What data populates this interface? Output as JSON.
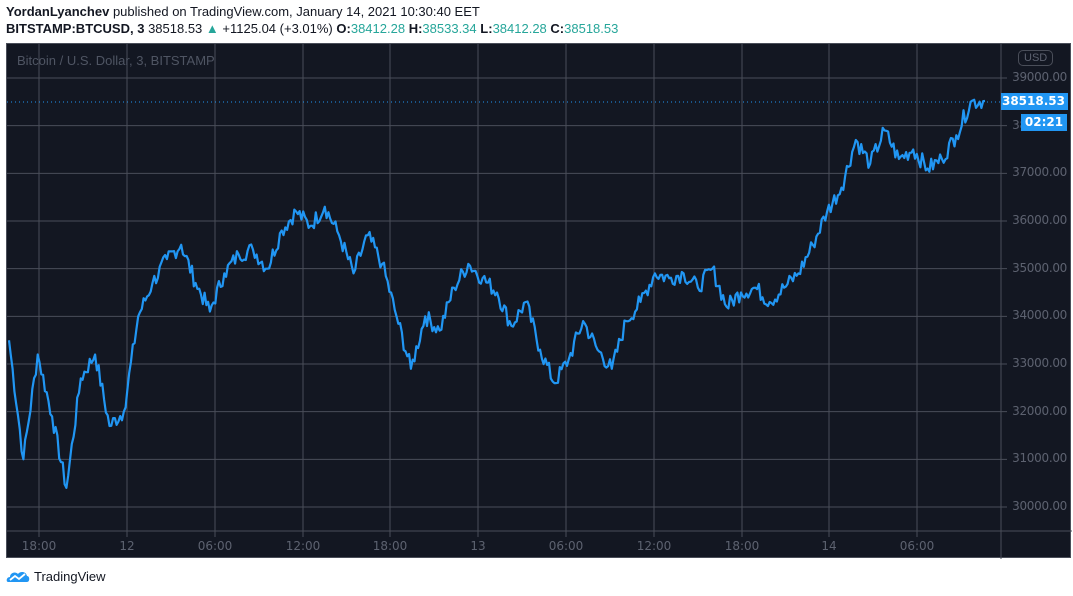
{
  "header": {
    "author": "YordanLyanchev",
    "published_text": "published on TradingView.com, January 14, 2021 10:30:40 EET",
    "symbol": "BITSTAMP:BTCUSD, 3",
    "last": "38518.53",
    "change_arrow": "▲",
    "change": "+1125.04 (+3.01%)",
    "open_label": "O:",
    "open": "38412.28",
    "high_label": "H:",
    "high": "38533.34",
    "low_label": "L:",
    "low": "38412.28",
    "close_label": "C:",
    "close": "38518.53"
  },
  "chart": {
    "legend_title": "Bitcoin / U.S. Dollar, 3, BITSTAMP",
    "currency_badge": "USD",
    "price_tag": "38518.53",
    "countdown_tag": "02:21",
    "colors": {
      "background": "#131722",
      "line": "#2196f3",
      "grid": "#4a4e59",
      "up": "#26a69a"
    }
  },
  "footer": {
    "brand": "TradingView"
  },
  "chart_data": {
    "type": "line",
    "title": "Bitcoin / U.S. Dollar, 3, BITSTAMP",
    "xlabel": "",
    "ylabel": "USD",
    "ylim": [
      29500,
      39500
    ],
    "grid": true,
    "y_ticks": [
      "39000.00",
      "38000.00",
      "37000.00",
      "36000.00",
      "35000.00",
      "34000.00",
      "33000.00",
      "32000.00",
      "31000.00",
      "30000.00"
    ],
    "x_ticks": [
      "18:00",
      "12",
      "06:00",
      "12:00",
      "18:00",
      "13",
      "06:00",
      "12:00",
      "18:00",
      "14",
      "06:00"
    ],
    "last_price": 38518.53,
    "series": [
      {
        "name": "BTCUSD",
        "x": [
          "Jan11 15:00",
          "Jan11 16:00",
          "Jan11 17:00",
          "Jan11 18:00",
          "Jan11 19:00",
          "Jan11 20:00",
          "Jan11 21:00",
          "Jan11 22:00",
          "Jan11 23:00",
          "Jan12 00:00",
          "Jan12 01:00",
          "Jan12 02:00",
          "Jan12 03:00",
          "Jan12 04:00",
          "Jan12 05:00",
          "Jan12 06:00",
          "Jan12 07:00",
          "Jan12 08:00",
          "Jan12 09:00",
          "Jan12 10:00",
          "Jan12 11:00",
          "Jan12 12:00",
          "Jan12 13:00",
          "Jan12 14:00",
          "Jan12 15:00",
          "Jan12 16:00",
          "Jan12 17:00",
          "Jan12 18:00",
          "Jan12 19:00",
          "Jan12 20:00",
          "Jan12 21:00",
          "Jan12 22:00",
          "Jan12 23:00",
          "Jan13 00:00",
          "Jan13 01:00",
          "Jan13 02:00",
          "Jan13 03:00",
          "Jan13 04:00",
          "Jan13 05:00",
          "Jan13 06:00",
          "Jan13 07:00",
          "Jan13 08:00",
          "Jan13 09:00",
          "Jan13 10:00",
          "Jan13 11:00",
          "Jan13 12:00",
          "Jan13 13:00",
          "Jan13 14:00",
          "Jan13 15:00",
          "Jan13 16:00",
          "Jan13 17:00",
          "Jan13 18:00",
          "Jan13 19:00",
          "Jan13 20:00",
          "Jan13 21:00",
          "Jan13 22:00",
          "Jan13 23:00",
          "Jan14 00:00",
          "Jan14 01:00",
          "Jan14 02:00",
          "Jan14 03:00",
          "Jan14 04:00",
          "Jan14 05:00",
          "Jan14 06:00",
          "Jan14 07:00",
          "Jan14 08:00",
          "Jan14 09:00",
          "Jan14 10:00",
          "Jan14 10:30"
        ],
        "values": [
          33500,
          31000,
          33200,
          31900,
          30400,
          32700,
          33200,
          31700,
          32000,
          34000,
          34700,
          35200,
          35500,
          34700,
          34100,
          34900,
          35300,
          35400,
          35000,
          35800,
          36200,
          35900,
          36300,
          35700,
          34900,
          35700,
          35100,
          34000,
          32900,
          34000,
          33700,
          34600,
          35100,
          34800,
          34500,
          33800,
          34300,
          33300,
          32600,
          33100,
          33900,
          33300,
          32900,
          33900,
          34300,
          34900,
          34800,
          34900,
          34600,
          35000,
          34200,
          34500,
          34600,
          34300,
          34600,
          34900,
          35500,
          36200,
          36700,
          37700,
          37200,
          37900,
          37300,
          37500,
          37100,
          37300,
          37800,
          38500,
          38518.53
        ]
      }
    ]
  }
}
